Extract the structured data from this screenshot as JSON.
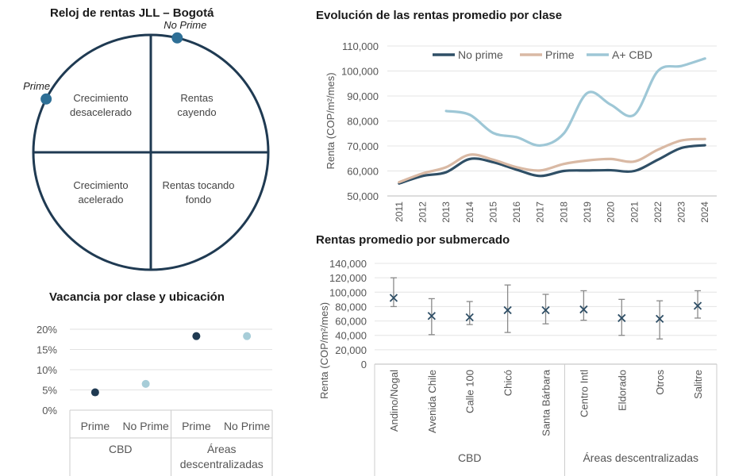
{
  "clock": {
    "title": "Reloj de rentas JLL  –  Bogotá",
    "quadrants": {
      "top_left": [
        "Crecimiento",
        "desacelerado"
      ],
      "top_right": [
        "Rentas",
        "cayendo"
      ],
      "bottom_left": [
        "Crecimiento",
        "acelerado"
      ],
      "bottom_right": [
        "Rentas tocando",
        "fondo"
      ]
    },
    "markers": [
      {
        "label": "No Prime",
        "clock_angle_deg": 13
      },
      {
        "label": "Prime",
        "clock_angle_deg": 297
      }
    ],
    "colors": {
      "ring": "#1f3a52",
      "marker": "#2e6f96"
    }
  },
  "vacancy": {
    "title": "Vacancia por clase y ubicación",
    "colors": {
      "dark": "#1f3a52",
      "light": "#a7cdd8"
    }
  },
  "evolution": {
    "title": "Evolución de las rentas promedio por clase",
    "colors": {
      "No prime": "#2f4f66",
      "Prime": "#d9b9a4",
      "A+ CBD": "#9ec7d6"
    }
  },
  "submarkets": {
    "title": "Rentas promedio por submercado",
    "colors": {
      "marker": "#2f4f66",
      "whisker": "#8a8a8a"
    }
  },
  "chart_data": [
    {
      "id": "vacancy",
      "type": "scatter",
      "title": "Vacancia por clase y ubicación",
      "groups": [
        {
          "label": "CBD",
          "categories": [
            "Prime",
            "No Prime"
          ]
        },
        {
          "label": "Áreas descentralizadas",
          "label_lines": [
            "Áreas",
            "descentralizadas"
          ],
          "categories": [
            "Prime",
            "No Prime"
          ]
        }
      ],
      "points": [
        {
          "group": "CBD",
          "category": "Prime",
          "value": 0.044,
          "color": "dark"
        },
        {
          "group": "CBD",
          "category": "No Prime",
          "value": 0.065,
          "color": "light"
        },
        {
          "group": "Áreas descentralizadas",
          "category": "Prime",
          "value": 0.183,
          "color": "dark"
        },
        {
          "group": "Áreas descentralizadas",
          "category": "No Prime",
          "value": 0.183,
          "color": "light"
        }
      ],
      "yticks": [
        "20%",
        "15%",
        "10%",
        "5%",
        "0%"
      ],
      "ylim": [
        0,
        0.2
      ],
      "grid": true
    },
    {
      "id": "evolution",
      "type": "line",
      "title": "Evolución de las rentas promedio por clase",
      "ylabel": "Renta (COP/m²/mes)",
      "x": [
        2011,
        2012,
        2013,
        2014,
        2015,
        2016,
        2017,
        2018,
        2019,
        2020,
        2021,
        2022,
        2023,
        2024
      ],
      "xtick_labels": [
        "2011",
        "2012",
        "2013",
        "2014",
        "2015",
        "2016",
        "2017",
        "2018",
        "2019",
        "2020",
        "2021",
        "2022",
        "2023",
        "2024"
      ],
      "yticks": [
        "110,000",
        "100,000",
        "90,000",
        "80,000",
        "70,000",
        "60,000",
        "50,000"
      ],
      "ylim": [
        50000,
        110000
      ],
      "legend": "top",
      "grid": true,
      "series": [
        {
          "name": "No prime",
          "values": [
            55000,
            58000,
            59500,
            64800,
            63500,
            60500,
            58000,
            60000,
            60200,
            60300,
            60000,
            64500,
            69200,
            70300
          ]
        },
        {
          "name": "Prime",
          "values": [
            55500,
            59000,
            61500,
            66500,
            64500,
            61500,
            60200,
            62800,
            64200,
            64800,
            63800,
            68500,
            72200,
            72800
          ]
        },
        {
          "name": "A+ CBD",
          "values": [
            null,
            null,
            84000,
            82500,
            75200,
            73500,
            70200,
            75000,
            91200,
            86500,
            82500,
            100000,
            102000,
            105000
          ]
        }
      ]
    },
    {
      "id": "submarkets",
      "type": "scatter",
      "title": "Rentas promedio por submercado",
      "ylabel": "Renta (COP/m²/mes)",
      "yticks": [
        "140,000",
        "120,000",
        "100,000",
        "80,000",
        "60,000",
        "40,000",
        "20,000",
        "0"
      ],
      "ylim": [
        0,
        140000
      ],
      "grid": true,
      "groups": [
        {
          "label": "CBD",
          "categories": [
            "Andino/Nogal",
            "Avenida Chile",
            "Calle 100",
            "Chicó",
            "Santa Bárbara"
          ]
        },
        {
          "label": "Áreas descentralizadas",
          "categories": [
            "Centro Intl",
            "Eldorado",
            "Otros",
            "Salitre"
          ]
        }
      ],
      "points": [
        {
          "category": "Andino/Nogal",
          "value": 92000,
          "low": 80000,
          "high": 120000
        },
        {
          "category": "Avenida Chile",
          "value": 67000,
          "low": 41000,
          "high": 91000
        },
        {
          "category": "Calle 100",
          "value": 65000,
          "low": 55000,
          "high": 87000
        },
        {
          "category": "Chicó",
          "value": 75000,
          "low": 44000,
          "high": 110000
        },
        {
          "category": "Santa Bárbara",
          "value": 75000,
          "low": 56000,
          "high": 97000
        },
        {
          "category": "Centro Intl",
          "value": 76000,
          "low": 61000,
          "high": 102000
        },
        {
          "category": "Eldorado",
          "value": 64000,
          "low": 40000,
          "high": 90000
        },
        {
          "category": "Otros",
          "value": 63000,
          "low": 35000,
          "high": 88000
        },
        {
          "category": "Salitre",
          "value": 81000,
          "low": 64000,
          "high": 102000
        }
      ]
    }
  ]
}
